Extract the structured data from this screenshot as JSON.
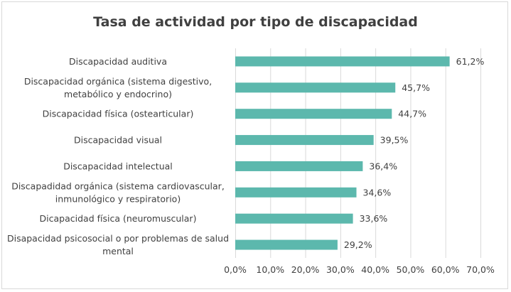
{
  "chart_data": {
    "type": "bar",
    "orientation": "horizontal",
    "title": "Tasa de actividad por tipo de discapacidad",
    "categories": [
      [
        "Discapacidad auditiva"
      ],
      [
        "Discapacidad orgánica (sistema digestivo,",
        "metabólico y endocrino)"
      ],
      [
        "Discapacidad física (ostearticular)"
      ],
      [
        "Discapacidad visual"
      ],
      [
        "Discapacidad intelectual"
      ],
      [
        "Discapadidad orgánica (sistema cardiovascular,",
        "inmunológico y respiratorio)"
      ],
      [
        "Dicapacidad física (neuromuscular)"
      ],
      [
        "Disapacidad psicosocial o por problemas de salud",
        "mental"
      ]
    ],
    "values": [
      61.2,
      45.7,
      44.7,
      39.5,
      36.4,
      34.6,
      33.6,
      29.2
    ],
    "value_labels": [
      "61,2%",
      "45,7%",
      "44,7%",
      "39,5%",
      "36,4%",
      "34,6%",
      "33,6%",
      "29,2%"
    ],
    "xlim": [
      0,
      70
    ],
    "ticks": [
      0,
      10,
      20,
      30,
      40,
      50,
      60,
      70
    ],
    "tick_labels": [
      "0,0%",
      "10,0%",
      "20,0%",
      "30,0%",
      "40,0%",
      "50,0%",
      "60,0%",
      "70,0%"
    ],
    "grid": true,
    "bar_color": "#5cb8ad",
    "grid_color": "#d9d9d9"
  }
}
